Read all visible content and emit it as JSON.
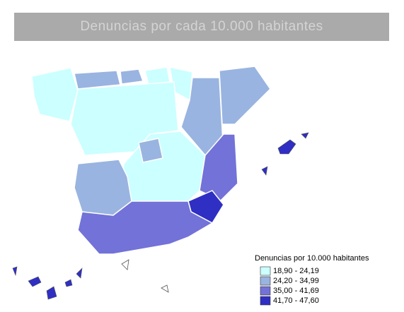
{
  "title": "Denuncias por cada 10.000 habitantes",
  "legend": {
    "title": "Denuncias por 10.000 habitantes",
    "items": [
      {
        "label": "18,90 - 24,19",
        "color": "#ccffff"
      },
      {
        "label": "24,20 - 34,99",
        "color": "#99b4e0"
      },
      {
        "label": "35,00 - 41,69",
        "color": "#7272d8"
      },
      {
        "label": "41,70 - 47,60",
        "color": "#2f2fc4"
      }
    ]
  }
}
